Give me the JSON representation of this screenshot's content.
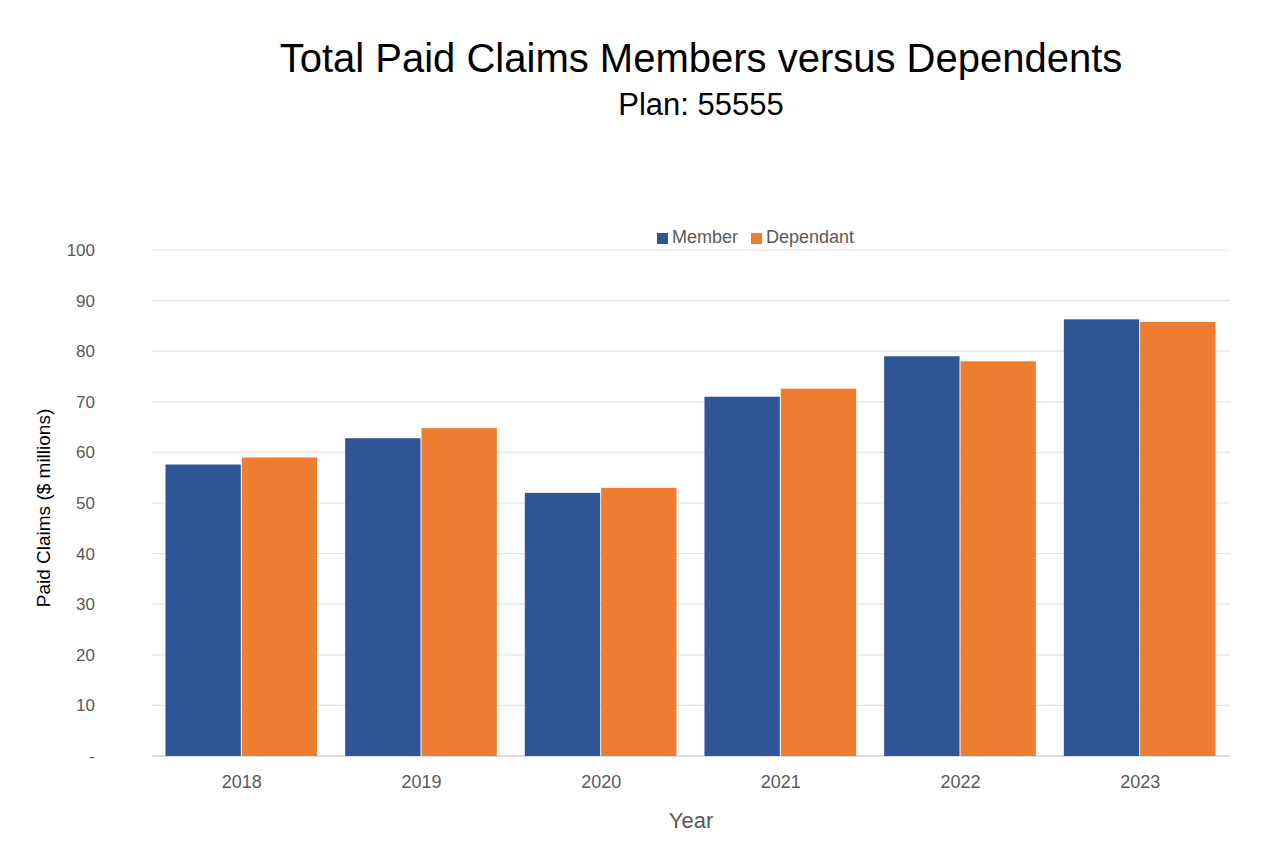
{
  "chart_data": {
    "type": "bar",
    "title": "Total Paid Claims Members versus Dependents",
    "subtitle": "Plan: 55555",
    "x_label": "Year",
    "y_label": "Paid Claims ($ millions)",
    "categories": [
      "2018",
      "2019",
      "2020",
      "2021",
      "2022",
      "2023"
    ],
    "series": [
      {
        "name": "Member",
        "color": "#2f5597",
        "values": [
          57.6,
          62.8,
          52,
          71,
          79,
          86.3
        ]
      },
      {
        "name": "Dependant",
        "color": "#ed7d31",
        "values": [
          59,
          64.8,
          53,
          72.6,
          78,
          85.8
        ]
      }
    ],
    "ylim": [
      0,
      100
    ],
    "yticks": [
      {
        "value": 0,
        "label": "-"
      },
      10,
      20,
      30,
      40,
      50,
      60,
      70,
      80,
      90,
      100
    ],
    "grid": true,
    "legend": "top"
  }
}
